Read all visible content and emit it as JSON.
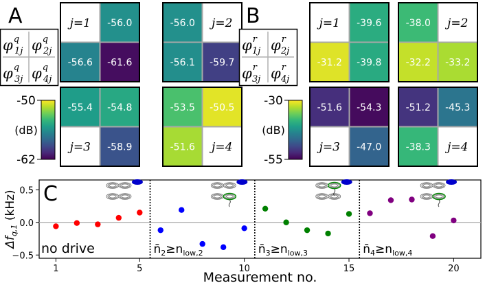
{
  "panels": {
    "A": {
      "letter": "A",
      "superscript": "q",
      "phi_labels": [
        "φ",
        "φ",
        "φ",
        "φ"
      ],
      "phi_subscripts": [
        "1j",
        "2j",
        "3j",
        "4j"
      ],
      "colorbar": {
        "max_label": "-50",
        "min_label": "-62",
        "unit": "(dB)",
        "min": -62,
        "max": -50
      },
      "blocks": [
        {
          "j_label": "j=1",
          "empty_index": 0,
          "values": [
            null,
            -56.0,
            -56.6,
            -61.6
          ]
        },
        {
          "j_label": "j=2",
          "empty_index": 1,
          "values": [
            -56.0,
            null,
            -56.1,
            -59.7
          ]
        },
        {
          "j_label": "j=3",
          "empty_index": 2,
          "values": [
            -55.4,
            -54.8,
            null,
            -58.9
          ]
        },
        {
          "j_label": "j=4",
          "empty_index": 3,
          "values": [
            -53.5,
            -50.5,
            -51.6,
            null
          ]
        }
      ],
      "value_labels": [
        [
          "",
          "-56.0",
          "-56.6",
          "-61.6"
        ],
        [
          "-56.0",
          "",
          "-56.1",
          "-59.7"
        ],
        [
          "-55.4",
          "-54.8",
          "",
          "-58.9"
        ],
        [
          "-53.5",
          "-50.5",
          "-51.6",
          ""
        ]
      ]
    },
    "B": {
      "letter": "B",
      "superscript": "r",
      "phi_labels": [
        "φ",
        "φ",
        "φ",
        "φ"
      ],
      "phi_subscripts": [
        "1j",
        "2j",
        "3j",
        "4j"
      ],
      "colorbar": {
        "max_label": "-30",
        "min_label": "-55",
        "unit": "(dB)",
        "min": -55,
        "max": -30
      },
      "blocks": [
        {
          "j_label": "j=1",
          "empty_index": 0,
          "values": [
            null,
            -39.6,
            -31.2,
            -39.8
          ]
        },
        {
          "j_label": "j=2",
          "empty_index": 1,
          "values": [
            -38.0,
            null,
            -32.2,
            -33.2
          ]
        },
        {
          "j_label": "j=3",
          "empty_index": 2,
          "values": [
            -51.6,
            -54.3,
            null,
            -47.0
          ]
        },
        {
          "j_label": "j=4",
          "empty_index": 3,
          "values": [
            -51.2,
            -45.3,
            -38.3,
            null
          ]
        }
      ],
      "value_labels": [
        [
          "",
          "-39.6",
          "-31.2",
          "-39.8"
        ],
        [
          "-38.0",
          "",
          "-32.2",
          "-33.2"
        ],
        [
          "-51.6",
          "-54.3",
          "",
          "-47.0"
        ],
        [
          "-51.2",
          "-45.3",
          "-38.3",
          ""
        ]
      ]
    }
  },
  "colors": {
    "viridis": [
      "#440154",
      "#482878",
      "#3e4989",
      "#31688e",
      "#26828e",
      "#1f9e89",
      "#35b779",
      "#6ece58",
      "#b5de2b",
      "#fde725"
    ],
    "series": [
      "#ff0000",
      "#0000ff",
      "#008000",
      "#800080"
    ],
    "empty_cell": "#ffffff",
    "cell_divider": "#a8a8a8"
  },
  "chart_data": {
    "type": "scatter",
    "panel_letter": "C",
    "xlabel": "Measurement no.",
    "ylabel_main": "Δf",
    "ylabel_sub": "q,1",
    "ylabel_unit": " (kHz)",
    "xlim": [
      0.2,
      21.3
    ],
    "ylim": [
      -0.55,
      0.65
    ],
    "xticks": [
      1,
      5,
      10,
      15,
      20
    ],
    "yticks": [
      -0.5,
      0.0,
      0.5
    ],
    "ytick_labels": [
      "−0.5",
      "0.0",
      "0.5"
    ],
    "zero_line": true,
    "dividers_x": [
      5.5,
      10.5,
      15.5
    ],
    "series": [
      {
        "label": "no drive",
        "x": [
          1,
          2,
          3,
          4,
          5
        ],
        "y": [
          -0.06,
          -0.01,
          -0.03,
          0.07,
          0.15
        ]
      },
      {
        "label": "n̄₂≥n_low,2",
        "label_main": "n̄",
        "label_sub1": "2",
        "label_mid": "≥n",
        "label_sub2": "low,2",
        "x": [
          6,
          7,
          8,
          9,
          10
        ],
        "y": [
          -0.12,
          0.19,
          -0.33,
          -0.38,
          -0.09
        ]
      },
      {
        "label": "n̄₃≥n_low,3",
        "label_main": "n̄",
        "label_sub1": "3",
        "label_mid": "≥n",
        "label_sub2": "low,3",
        "x": [
          11,
          12,
          13,
          14,
          15
        ],
        "y": [
          0.21,
          0.0,
          -0.12,
          -0.17,
          0.13
        ]
      },
      {
        "label": "n̄₄≥n_low,4",
        "label_main": "n̄",
        "label_sub1": "4",
        "label_mid": "≥n",
        "label_sub2": "low,4",
        "x": [
          16,
          17,
          18,
          19,
          20
        ],
        "y": [
          0.14,
          0.34,
          0.35,
          -0.21,
          0.03
        ]
      }
    ]
  }
}
